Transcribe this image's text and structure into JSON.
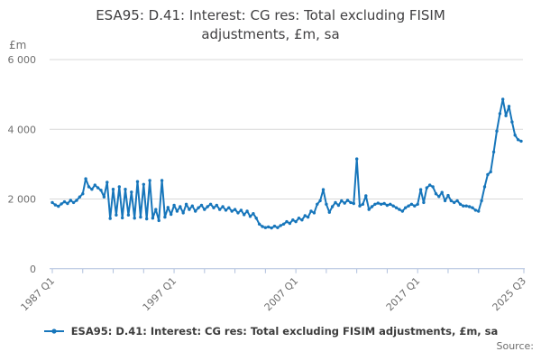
{
  "header": {
    "title_line1": "ESA95: D.41: Interest: CG res: Total excluding FISIM",
    "title_line2": "adjustments, £m, sa"
  },
  "y_unit": "£m",
  "legend": {
    "label": "ESA95: D.41: Interest: CG res: Total excluding FISIM adjustments, £m, sa"
  },
  "source_label": "Source:",
  "colors": {
    "line": "#1776bb",
    "grid": "#d9d9d9",
    "axis": "#b0c0dd",
    "tick_text": "#6e6e6e",
    "title_text": "#414042"
  },
  "chart_data": {
    "type": "line",
    "title": "ESA95: D.41: Interest: CG res: Total excluding FISIM adjustments, £m, sa",
    "ylabel": "£m",
    "ylim": [
      0,
      6000
    ],
    "grid": "horizontal",
    "legend_position": "bottom",
    "frequency": "quarterly",
    "x_start": "1987 Q1",
    "x_end": "2025 Q3",
    "yticks": [
      {
        "value": 0,
        "label": "0"
      },
      {
        "value": 2000,
        "label": "2 000"
      },
      {
        "value": 4000,
        "label": "4 000"
      },
      {
        "value": 6000,
        "label": "6 000"
      }
    ],
    "xticks": [
      {
        "index": 0,
        "label": "1987 Q1"
      },
      {
        "index": 40,
        "label": "1997 Q1"
      },
      {
        "index": 80,
        "label": "2007 Q1"
      },
      {
        "index": 120,
        "label": "2017 Q1"
      },
      {
        "index": 154,
        "label": "2025 Q3"
      }
    ],
    "minor_tick_every_quarters": 10,
    "series": [
      {
        "name": "ESA95: D.41: Interest: CG res: Total excluding FISIM adjustments, £m, sa",
        "values": [
          1900,
          1830,
          1790,
          1860,
          1920,
          1870,
          1960,
          1900,
          1960,
          2060,
          2150,
          2580,
          2350,
          2280,
          2400,
          2320,
          2250,
          2060,
          2480,
          1440,
          2280,
          1540,
          2350,
          1460,
          2280,
          1540,
          2200,
          1450,
          2500,
          1480,
          2420,
          1430,
          2530,
          1450,
          1700,
          1380,
          2530,
          1480,
          1760,
          1560,
          1820,
          1650,
          1780,
          1600,
          1850,
          1700,
          1800,
          1650,
          1750,
          1820,
          1700,
          1780,
          1850,
          1750,
          1820,
          1700,
          1780,
          1680,
          1750,
          1650,
          1700,
          1600,
          1680,
          1550,
          1650,
          1500,
          1580,
          1450,
          1280,
          1210,
          1180,
          1200,
          1170,
          1220,
          1180,
          1240,
          1280,
          1350,
          1300,
          1400,
          1350,
          1450,
          1400,
          1520,
          1480,
          1650,
          1600,
          1850,
          1950,
          2270,
          1850,
          1620,
          1780,
          1900,
          1820,
          1950,
          1880,
          1960,
          1900,
          1870,
          3150,
          1800,
          1850,
          2090,
          1700,
          1780,
          1850,
          1880,
          1850,
          1870,
          1820,
          1850,
          1800,
          1750,
          1700,
          1650,
          1750,
          1800,
          1850,
          1800,
          1850,
          2270,
          1900,
          2320,
          2400,
          2350,
          2150,
          2070,
          2190,
          1950,
          2100,
          1950,
          1900,
          1950,
          1850,
          1800,
          1800,
          1780,
          1750,
          1680,
          1650,
          1950,
          2350,
          2700,
          2780,
          3350,
          3950,
          4450,
          4860,
          4390,
          4660,
          4210,
          3830,
          3700,
          3660
        ]
      }
    ]
  }
}
